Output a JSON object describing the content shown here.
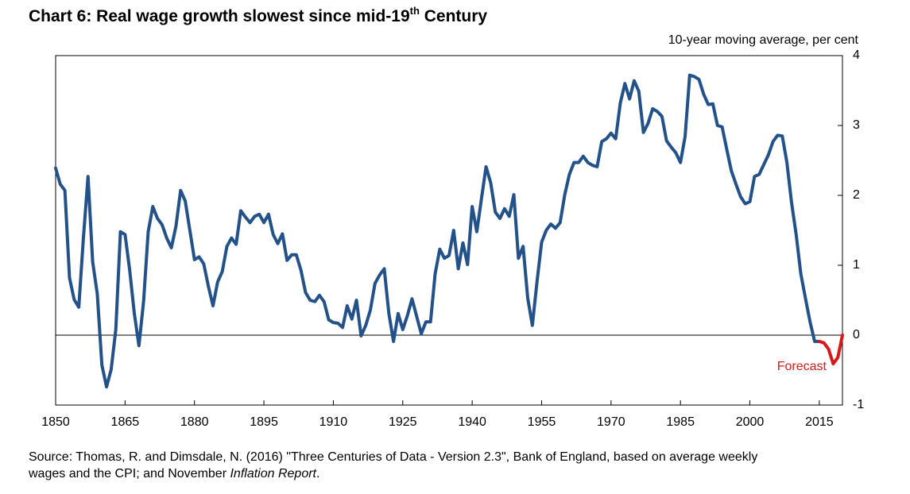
{
  "chart_data": {
    "type": "line",
    "title": {
      "text": "Chart 6: Real wage growth slowest since mid-19",
      "superscript": "th",
      "after": " Century"
    },
    "y_label": "10-year moving average, per cent",
    "annotation": "Forecast",
    "source": [
      "Source: Thomas, R. and Dimsdale, N. (2016) \"Three Centuries of Data - Version 2.3\", Bank of England, based on average weekly",
      "wages and the CPI; and November ",
      "Inflation Report",
      "."
    ],
    "xlim": [
      1850,
      2020
    ],
    "xticks": [
      1850,
      1865,
      1880,
      1895,
      1910,
      1925,
      1940,
      1955,
      1970,
      1985,
      2000,
      2015
    ],
    "ylim": [
      -1,
      4
    ],
    "yticks": [
      4,
      3,
      2,
      1,
      0,
      -1
    ],
    "y_axis_side": "right",
    "zero_line": true,
    "series": [
      {
        "name": "Real wage growth",
        "color": "#235189",
        "x": [
          1850,
          1851,
          1852,
          1853,
          1854,
          1855,
          1856,
          1857,
          1858,
          1859,
          1860,
          1861,
          1862,
          1863,
          1864,
          1865,
          1866,
          1867,
          1868,
          1869,
          1870,
          1871,
          1872,
          1873,
          1874,
          1875,
          1876,
          1877,
          1878,
          1879,
          1880,
          1881,
          1882,
          1883,
          1884,
          1885,
          1886,
          1887,
          1888,
          1889,
          1890,
          1891,
          1892,
          1893,
          1894,
          1895,
          1896,
          1897,
          1898,
          1899,
          1900,
          1901,
          1902,
          1903,
          1904,
          1905,
          1906,
          1907,
          1908,
          1909,
          1910,
          1911,
          1912,
          1913,
          1914,
          1915,
          1916,
          1917,
          1918,
          1919,
          1920,
          1921,
          1922,
          1923,
          1924,
          1925,
          1926,
          1927,
          1928,
          1929,
          1930,
          1931,
          1932,
          1933,
          1934,
          1935,
          1936,
          1937,
          1938,
          1939,
          1940,
          1941,
          1942,
          1943,
          1944,
          1945,
          1946,
          1947,
          1948,
          1949,
          1950,
          1951,
          1952,
          1953,
          1954,
          1955,
          1956,
          1957,
          1958,
          1959,
          1960,
          1961,
          1962,
          1963,
          1964,
          1965,
          1966,
          1967,
          1968,
          1969,
          1970,
          1971,
          1972,
          1973,
          1974,
          1975,
          1976,
          1977,
          1978,
          1979,
          1980,
          1981,
          1982,
          1983,
          1984,
          1985,
          1986,
          1987,
          1988,
          1989,
          1990,
          1991,
          1992,
          1993,
          1994,
          1995,
          1996,
          1997,
          1998,
          1999,
          2000,
          2001,
          2002,
          2003,
          2004,
          2005,
          2006,
          2007,
          2008,
          2009,
          2010,
          2011,
          2012,
          2013,
          2014,
          2015
        ],
        "values": [
          2.39,
          2.16,
          2.07,
          0.82,
          0.51,
          0.4,
          1.39,
          2.27,
          1.05,
          0.59,
          -0.43,
          -0.74,
          -0.49,
          0.08,
          1.48,
          1.44,
          0.93,
          0.31,
          -0.15,
          0.48,
          1.48,
          1.84,
          1.67,
          1.58,
          1.39,
          1.25,
          1.56,
          2.07,
          1.92,
          1.5,
          1.08,
          1.12,
          1.02,
          0.7,
          0.42,
          0.76,
          0.91,
          1.27,
          1.39,
          1.3,
          1.78,
          1.69,
          1.61,
          1.7,
          1.73,
          1.61,
          1.73,
          1.44,
          1.31,
          1.45,
          1.07,
          1.15,
          1.15,
          0.93,
          0.61,
          0.5,
          0.48,
          0.57,
          0.48,
          0.22,
          0.18,
          0.17,
          0.11,
          0.42,
          0.23,
          0.5,
          -0.01,
          0.14,
          0.36,
          0.74,
          0.86,
          0.95,
          0.31,
          -0.09,
          0.31,
          0.08,
          0.28,
          0.52,
          0.27,
          0.02,
          0.19,
          0.19,
          0.88,
          1.23,
          1.1,
          1.14,
          1.5,
          0.95,
          1.32,
          1.01,
          1.84,
          1.48,
          1.95,
          2.41,
          2.18,
          1.76,
          1.67,
          1.81,
          1.7,
          2.01,
          1.1,
          1.27,
          0.53,
          0.14,
          0.76,
          1.33,
          1.5,
          1.59,
          1.53,
          1.61,
          2.01,
          2.3,
          2.47,
          2.47,
          2.56,
          2.47,
          2.43,
          2.41,
          2.77,
          2.81,
          2.89,
          2.81,
          3.32,
          3.6,
          3.38,
          3.64,
          3.49,
          2.9,
          3.03,
          3.24,
          3.2,
          3.13,
          2.78,
          2.69,
          2.61,
          2.47,
          2.84,
          3.72,
          3.7,
          3.66,
          3.45,
          3.3,
          3.31,
          3.0,
          2.98,
          2.66,
          2.35,
          2.16,
          1.98,
          1.88,
          1.91,
          2.27,
          2.3,
          2.44,
          2.58,
          2.77,
          2.86,
          2.85,
          2.47,
          1.9,
          1.44,
          0.88,
          0.53,
          0.19,
          -0.09,
          -0.09
        ]
      },
      {
        "name": "Forecast",
        "color": "#d7191c",
        "x": [
          2015,
          2016,
          2017,
          2018,
          2019,
          2020
        ],
        "values": [
          -0.09,
          -0.11,
          -0.2,
          -0.41,
          -0.32,
          0
        ]
      }
    ]
  }
}
